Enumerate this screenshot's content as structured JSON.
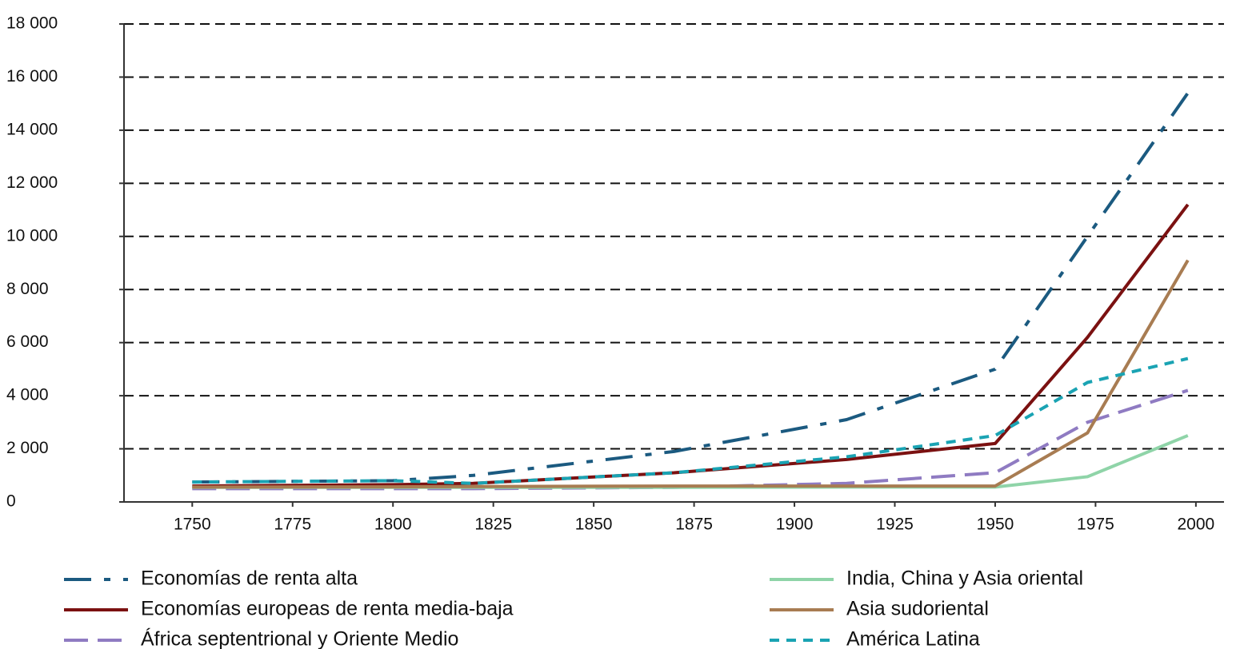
{
  "chart_data": {
    "type": "line",
    "x": [
      1750,
      1800,
      1820,
      1870,
      1913,
      1950,
      1973,
      1998
    ],
    "xlim": [
      1733,
      2007
    ],
    "xticks": [
      1750,
      1775,
      1800,
      1825,
      1850,
      1875,
      1900,
      1925,
      1950,
      1975,
      2000
    ],
    "ylim": [
      0,
      18000
    ],
    "yticks": [
      0,
      {
        "value": 2000,
        "label": "2 000"
      },
      {
        "value": 4000,
        "label": "4 000"
      },
      {
        "value": 6000,
        "label": "6 000"
      },
      {
        "value": 8000,
        "label": "8 000"
      },
      {
        "value": 10000,
        "label": "10 000"
      },
      {
        "value": 12000,
        "label": "12 000"
      },
      {
        "value": 14000,
        "label": "14 000"
      },
      {
        "value": 16000,
        "label": "16 000"
      },
      {
        "value": 18000,
        "label": "18 000"
      }
    ],
    "grid": true,
    "series": [
      {
        "name": "Economías de renta alta",
        "color": "#1b5a80",
        "dash": "34 16 8 16",
        "values": [
          750,
          800,
          1000,
          1900,
          3100,
          5000,
          10000,
          15400
        ]
      },
      {
        "name": "Economías europeas de renta media-baja",
        "color": "#7b1111",
        "dash": "none",
        "values": [
          600,
          650,
          700,
          1100,
          1600,
          2200,
          6200,
          11200
        ]
      },
      {
        "name": "África septentrional y Oriente Medio",
        "color": "#8f7bc2",
        "dash": "30 12",
        "values": [
          500,
          500,
          500,
          550,
          700,
          1100,
          3000,
          4200
        ]
      },
      {
        "name": "India, China y Asia oriental",
        "color": "#8fd4a8",
        "dash": "none",
        "values": [
          550,
          550,
          550,
          550,
          560,
          560,
          950,
          2500
        ]
      },
      {
        "name": "Asia sudoriental",
        "color": "#a87c52",
        "dash": "none",
        "values": [
          560,
          570,
          580,
          600,
          600,
          600,
          2600,
          9100
        ]
      },
      {
        "name": "América Latina",
        "color": "#1aa3b3",
        "dash": "12 9",
        "values": [
          750,
          800,
          700,
          1100,
          1700,
          2500,
          4500,
          5400
        ]
      }
    ]
  }
}
